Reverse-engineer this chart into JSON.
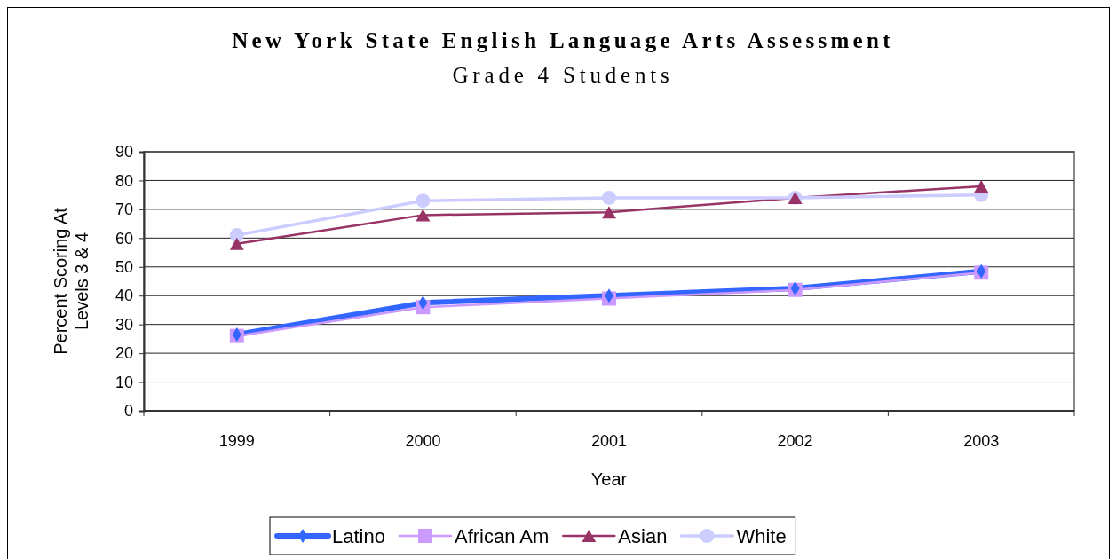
{
  "chart_data": {
    "type": "line",
    "title": "New York State English Language Arts Assessment",
    "subtitle": "Grade 4 Students",
    "xlabel": "Year",
    "ylabel": "Percent Scoring At Levels 3 & 4",
    "categories": [
      "1999",
      "2000",
      "2001",
      "2002",
      "2003"
    ],
    "series": [
      {
        "name": "Latino",
        "color": "#3366ff",
        "marker": "diamond",
        "values": [
          26.5,
          37.5,
          40,
          42.5,
          48.5
        ]
      },
      {
        "name": "African Am",
        "color": "#cc99ff",
        "marker": "square",
        "values": [
          26,
          36,
          39,
          42,
          48
        ]
      },
      {
        "name": "Asian",
        "color": "#993366",
        "marker": "triangle",
        "values": [
          58,
          68,
          69,
          74,
          78
        ]
      },
      {
        "name": "White",
        "color": "#ccccff",
        "marker": "circle",
        "values": [
          61,
          73,
          74,
          74,
          75
        ]
      }
    ],
    "ylim": [
      0,
      90
    ],
    "yticks": [
      0,
      10,
      20,
      30,
      40,
      50,
      60,
      70,
      80,
      90
    ],
    "grid": "y",
    "legend": "bottom"
  }
}
